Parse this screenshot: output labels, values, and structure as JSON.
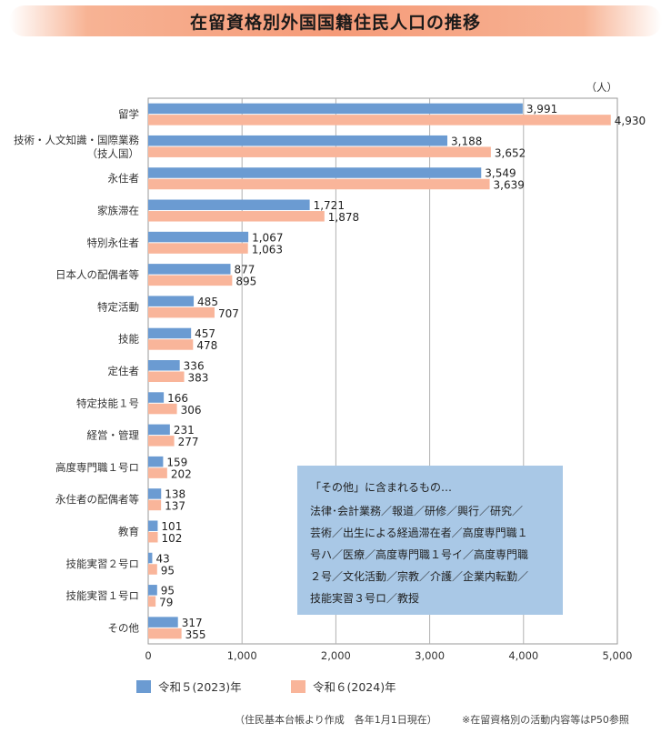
{
  "title": "在留資格別外国国籍住民人口の推移",
  "unit": "（人）",
  "colors": {
    "series_2023": "#6b9bd2",
    "series_2024": "#f9b59a",
    "grid": "#b0b0b0"
  },
  "chart_data": {
    "type": "bar",
    "orientation": "horizontal",
    "categories": [
      [
        "留学"
      ],
      [
        "技術・人文知識・国際業務",
        "（技人国）"
      ],
      [
        "永住者"
      ],
      [
        "家族滞在"
      ],
      [
        "特別永住者"
      ],
      [
        "日本人の配偶者等"
      ],
      [
        "特定活動"
      ],
      [
        "技能"
      ],
      [
        "定住者"
      ],
      [
        "特定技能１号"
      ],
      [
        "経営・管理"
      ],
      [
        "高度専門職１号ロ"
      ],
      [
        "永住者の配偶者等"
      ],
      [
        "教育"
      ],
      [
        "技能実習２号ロ"
      ],
      [
        "技能実習１号ロ"
      ],
      [
        "その他"
      ]
    ],
    "series": [
      {
        "name": "令和５(2023)年",
        "values": [
          3991,
          3188,
          3549,
          1721,
          1067,
          877,
          485,
          457,
          336,
          166,
          231,
          159,
          138,
          101,
          43,
          95,
          317
        ]
      },
      {
        "name": "令和６(2024)年",
        "values": [
          4930,
          3652,
          3639,
          1878,
          1063,
          895,
          707,
          478,
          383,
          306,
          277,
          202,
          137,
          102,
          95,
          79,
          355
        ]
      }
    ],
    "xlim": [
      0,
      5000
    ],
    "xticks": [
      "0",
      "1,000",
      "2,000",
      "3,000",
      "4,000",
      "5,000"
    ],
    "grid": true,
    "legend": "bottom"
  },
  "note": {
    "title": "「その他」に含まれるもの…",
    "lines": [
      "法律･会計業務／報道／研修／興行／研究／",
      "芸術／出生による経過滞在者／高度専門職１",
      "号ハ／医療／高度専門職１号イ／高度専門職",
      "２号／文化活動／宗教／介護／企業内転勤／",
      "技能実習３号ロ／教授"
    ]
  },
  "legend": {
    "series_2023": "令和５(2023)年",
    "series_2024": "令和６(2024)年"
  },
  "footnotes": {
    "source": "（住民基本台帳より作成　各年1月1日現在）",
    "reference": "※在留資格別の活動内容等はP50参照"
  }
}
